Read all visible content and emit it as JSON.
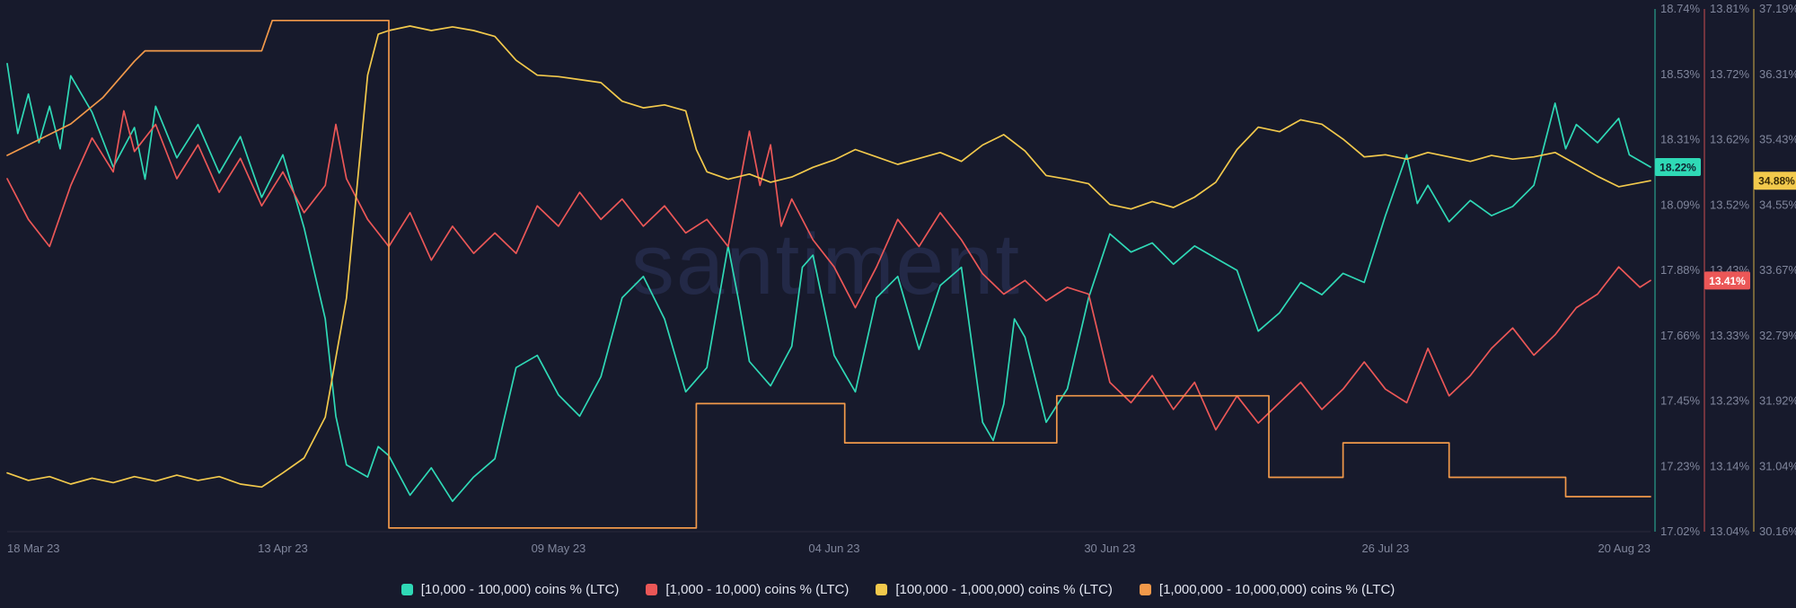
{
  "chart_data": {
    "type": "line",
    "watermark": "santiment",
    "background": "#171a2c",
    "axis_label_color": "#80869c",
    "x_ticks": [
      "18 Mar 23",
      "13 Apr 23",
      "09 May 23",
      "04 Jun 23",
      "30 Jun 23",
      "26 Jul 23",
      "20 Aug 23"
    ],
    "x_tick_days": [
      0,
      26,
      52,
      78,
      104,
      130,
      155
    ],
    "x_range_days": [
      0,
      155
    ],
    "grid": false,
    "legend_position": "bottom-center",
    "y_axes": [
      {
        "id": "teal",
        "color": "#2fd9b6",
        "max": 18.74,
        "min": 17.02,
        "ticks": [
          "18.74%",
          "18.53%",
          "18.31%",
          "18.09%",
          "17.88%",
          "17.66%",
          "17.45%",
          "17.23%",
          "17.02%"
        ]
      },
      {
        "id": "red",
        "color": "#eb5757",
        "max": 13.81,
        "min": 13.04,
        "ticks": [
          "13.81%",
          "13.72%",
          "13.62%",
          "13.52%",
          "13.43%",
          "13.33%",
          "13.23%",
          "13.14%",
          "13.04%"
        ]
      },
      {
        "id": "yellow",
        "color": "#f2c94c",
        "max": 37.19,
        "min": 30.16,
        "ticks": [
          "37.19%",
          "36.31%",
          "35.43%",
          "34.55%",
          "33.67%",
          "32.79%",
          "31.92%",
          "31.04%",
          "30.16%"
        ]
      }
    ],
    "badges": [
      {
        "axis": "teal",
        "value": 18.22,
        "text": "18.22%",
        "color": "#2fd9b6",
        "text_color": "#0e2430"
      },
      {
        "axis": "yellow",
        "value": 34.88,
        "text": "34.88%",
        "color": "#f2c94c",
        "text_color": "#3a2c07"
      },
      {
        "axis": "red",
        "value": 13.41,
        "text": "13.41%",
        "color": "#eb5757",
        "text_color": "#ffffff"
      }
    ],
    "series": [
      {
        "label": "[10,000 - 100,000) coins % (LTC)",
        "color": "#2fd9b6",
        "axis": "teal",
        "points": [
          [
            0,
            18.56
          ],
          [
            1,
            18.33
          ],
          [
            2,
            18.46
          ],
          [
            3,
            18.3
          ],
          [
            4,
            18.42
          ],
          [
            5,
            18.28
          ],
          [
            6,
            18.52
          ],
          [
            8,
            18.4
          ],
          [
            10,
            18.22
          ],
          [
            12,
            18.35
          ],
          [
            13,
            18.18
          ],
          [
            14,
            18.42
          ],
          [
            16,
            18.25
          ],
          [
            18,
            18.36
          ],
          [
            20,
            18.2
          ],
          [
            22,
            18.32
          ],
          [
            24,
            18.12
          ],
          [
            26,
            18.26
          ],
          [
            28,
            18.02
          ],
          [
            30,
            17.72
          ],
          [
            31,
            17.4
          ],
          [
            32,
            17.24
          ],
          [
            34,
            17.2
          ],
          [
            35,
            17.3
          ],
          [
            36,
            17.27
          ],
          [
            38,
            17.14
          ],
          [
            40,
            17.23
          ],
          [
            42,
            17.12
          ],
          [
            44,
            17.2
          ],
          [
            46,
            17.26
          ],
          [
            48,
            17.56
          ],
          [
            50,
            17.6
          ],
          [
            52,
            17.47
          ],
          [
            54,
            17.4
          ],
          [
            56,
            17.53
          ],
          [
            58,
            17.79
          ],
          [
            60,
            17.86
          ],
          [
            62,
            17.72
          ],
          [
            64,
            17.48
          ],
          [
            66,
            17.56
          ],
          [
            68,
            17.96
          ],
          [
            69,
            17.78
          ],
          [
            70,
            17.58
          ],
          [
            72,
            17.5
          ],
          [
            74,
            17.63
          ],
          [
            75,
            17.89
          ],
          [
            76,
            17.93
          ],
          [
            78,
            17.6
          ],
          [
            80,
            17.48
          ],
          [
            82,
            17.79
          ],
          [
            84,
            17.86
          ],
          [
            86,
            17.62
          ],
          [
            88,
            17.83
          ],
          [
            90,
            17.89
          ],
          [
            92,
            17.38
          ],
          [
            93,
            17.32
          ],
          [
            94,
            17.44
          ],
          [
            95,
            17.72
          ],
          [
            96,
            17.66
          ],
          [
            98,
            17.38
          ],
          [
            100,
            17.49
          ],
          [
            102,
            17.79
          ],
          [
            104,
            18.0
          ],
          [
            106,
            17.94
          ],
          [
            108,
            17.97
          ],
          [
            110,
            17.9
          ],
          [
            112,
            17.96
          ],
          [
            114,
            17.92
          ],
          [
            116,
            17.88
          ],
          [
            118,
            17.68
          ],
          [
            120,
            17.74
          ],
          [
            122,
            17.84
          ],
          [
            124,
            17.8
          ],
          [
            126,
            17.87
          ],
          [
            128,
            17.84
          ],
          [
            130,
            18.06
          ],
          [
            132,
            18.26
          ],
          [
            133,
            18.1
          ],
          [
            134,
            18.16
          ],
          [
            136,
            18.04
          ],
          [
            138,
            18.11
          ],
          [
            140,
            18.06
          ],
          [
            142,
            18.09
          ],
          [
            144,
            18.16
          ],
          [
            146,
            18.43
          ],
          [
            147,
            18.28
          ],
          [
            148,
            18.36
          ],
          [
            150,
            18.3
          ],
          [
            152,
            18.38
          ],
          [
            153,
            18.26
          ],
          [
            155,
            18.22
          ]
        ]
      },
      {
        "label": "[1,000 - 10,000) coins % (LTC)",
        "color": "#eb5757",
        "axis": "red",
        "points": [
          [
            0,
            13.56
          ],
          [
            2,
            13.5
          ],
          [
            4,
            13.46
          ],
          [
            6,
            13.55
          ],
          [
            8,
            13.62
          ],
          [
            10,
            13.57
          ],
          [
            11,
            13.66
          ],
          [
            12,
            13.6
          ],
          [
            14,
            13.64
          ],
          [
            16,
            13.56
          ],
          [
            18,
            13.61
          ],
          [
            20,
            13.54
          ],
          [
            22,
            13.59
          ],
          [
            24,
            13.52
          ],
          [
            26,
            13.57
          ],
          [
            28,
            13.51
          ],
          [
            30,
            13.55
          ],
          [
            31,
            13.64
          ],
          [
            32,
            13.56
          ],
          [
            34,
            13.5
          ],
          [
            36,
            13.46
          ],
          [
            38,
            13.51
          ],
          [
            40,
            13.44
          ],
          [
            42,
            13.49
          ],
          [
            44,
            13.45
          ],
          [
            46,
            13.48
          ],
          [
            48,
            13.45
          ],
          [
            50,
            13.52
          ],
          [
            52,
            13.49
          ],
          [
            54,
            13.54
          ],
          [
            56,
            13.5
          ],
          [
            58,
            13.53
          ],
          [
            60,
            13.49
          ],
          [
            62,
            13.52
          ],
          [
            64,
            13.48
          ],
          [
            66,
            13.5
          ],
          [
            68,
            13.46
          ],
          [
            70,
            13.63
          ],
          [
            71,
            13.55
          ],
          [
            72,
            13.61
          ],
          [
            73,
            13.49
          ],
          [
            74,
            13.53
          ],
          [
            76,
            13.47
          ],
          [
            78,
            13.43
          ],
          [
            80,
            13.37
          ],
          [
            82,
            13.43
          ],
          [
            84,
            13.5
          ],
          [
            86,
            13.46
          ],
          [
            88,
            13.51
          ],
          [
            90,
            13.47
          ],
          [
            92,
            13.42
          ],
          [
            94,
            13.39
          ],
          [
            96,
            13.41
          ],
          [
            98,
            13.38
          ],
          [
            100,
            13.4
          ],
          [
            102,
            13.39
          ],
          [
            104,
            13.26
          ],
          [
            106,
            13.23
          ],
          [
            108,
            13.27
          ],
          [
            110,
            13.22
          ],
          [
            112,
            13.26
          ],
          [
            114,
            13.19
          ],
          [
            116,
            13.24
          ],
          [
            118,
            13.2
          ],
          [
            120,
            13.23
          ],
          [
            122,
            13.26
          ],
          [
            124,
            13.22
          ],
          [
            126,
            13.25
          ],
          [
            128,
            13.29
          ],
          [
            130,
            13.25
          ],
          [
            132,
            13.23
          ],
          [
            134,
            13.31
          ],
          [
            136,
            13.24
          ],
          [
            138,
            13.27
          ],
          [
            140,
            13.31
          ],
          [
            142,
            13.34
          ],
          [
            144,
            13.3
          ],
          [
            146,
            13.33
          ],
          [
            148,
            13.37
          ],
          [
            150,
            13.39
          ],
          [
            152,
            13.43
          ],
          [
            154,
            13.4
          ],
          [
            155,
            13.41
          ]
        ]
      },
      {
        "label": "[100,000 - 1,000,000) coins % (LTC)",
        "color": "#f2c94c",
        "axis": "yellow",
        "points": [
          [
            0,
            30.95
          ],
          [
            2,
            30.85
          ],
          [
            4,
            30.9
          ],
          [
            6,
            30.8
          ],
          [
            8,
            30.88
          ],
          [
            10,
            30.82
          ],
          [
            12,
            30.9
          ],
          [
            14,
            30.84
          ],
          [
            16,
            30.92
          ],
          [
            18,
            30.85
          ],
          [
            20,
            30.9
          ],
          [
            22,
            30.8
          ],
          [
            24,
            30.76
          ],
          [
            26,
            30.95
          ],
          [
            28,
            31.15
          ],
          [
            30,
            31.7
          ],
          [
            32,
            33.3
          ],
          [
            34,
            36.3
          ],
          [
            35,
            36.85
          ],
          [
            36,
            36.9
          ],
          [
            38,
            36.96
          ],
          [
            40,
            36.9
          ],
          [
            42,
            36.95
          ],
          [
            44,
            36.9
          ],
          [
            46,
            36.82
          ],
          [
            48,
            36.5
          ],
          [
            50,
            36.3
          ],
          [
            52,
            36.28
          ],
          [
            54,
            36.24
          ],
          [
            56,
            36.2
          ],
          [
            58,
            35.95
          ],
          [
            60,
            35.86
          ],
          [
            62,
            35.9
          ],
          [
            64,
            35.82
          ],
          [
            65,
            35.3
          ],
          [
            66,
            35.0
          ],
          [
            68,
            34.9
          ],
          [
            70,
            34.97
          ],
          [
            72,
            34.86
          ],
          [
            74,
            34.93
          ],
          [
            76,
            35.06
          ],
          [
            78,
            35.16
          ],
          [
            80,
            35.3
          ],
          [
            82,
            35.2
          ],
          [
            84,
            35.1
          ],
          [
            86,
            35.18
          ],
          [
            88,
            35.26
          ],
          [
            90,
            35.14
          ],
          [
            92,
            35.36
          ],
          [
            94,
            35.5
          ],
          [
            96,
            35.28
          ],
          [
            98,
            34.95
          ],
          [
            100,
            34.9
          ],
          [
            102,
            34.84
          ],
          [
            104,
            34.56
          ],
          [
            106,
            34.5
          ],
          [
            108,
            34.6
          ],
          [
            110,
            34.52
          ],
          [
            112,
            34.66
          ],
          [
            114,
            34.86
          ],
          [
            116,
            35.3
          ],
          [
            118,
            35.6
          ],
          [
            120,
            35.54
          ],
          [
            122,
            35.7
          ],
          [
            124,
            35.64
          ],
          [
            126,
            35.44
          ],
          [
            128,
            35.2
          ],
          [
            130,
            35.23
          ],
          [
            132,
            35.17
          ],
          [
            134,
            35.26
          ],
          [
            136,
            35.2
          ],
          [
            138,
            35.14
          ],
          [
            140,
            35.22
          ],
          [
            142,
            35.17
          ],
          [
            144,
            35.2
          ],
          [
            146,
            35.26
          ],
          [
            148,
            35.1
          ],
          [
            150,
            34.94
          ],
          [
            152,
            34.8
          ],
          [
            155,
            34.88
          ]
        ]
      },
      {
        "label": "[1,000,000 - 10,000,000) coins % (LTC)",
        "color": "#f2994a",
        "axis": "normalized",
        "scale_note": "no visible y-axis for this series; values are fraction of plot height (0 = bottom, 1 = top)",
        "points": [
          [
            0,
            0.72
          ],
          [
            3,
            0.75
          ],
          [
            6,
            0.78
          ],
          [
            9,
            0.83
          ],
          [
            12,
            0.9
          ],
          [
            13,
            0.92
          ],
          [
            24,
            0.92
          ],
          [
            25,
            0.978
          ],
          [
            36,
            0.978
          ],
          [
            36,
            0.007
          ],
          [
            65,
            0.007
          ],
          [
            65,
            0.245
          ],
          [
            79,
            0.245
          ],
          [
            79,
            0.17
          ],
          [
            99,
            0.17
          ],
          [
            99,
            0.26
          ],
          [
            119,
            0.26
          ],
          [
            119,
            0.104
          ],
          [
            126,
            0.104
          ],
          [
            126,
            0.17
          ],
          [
            136,
            0.17
          ],
          [
            136,
            0.104
          ],
          [
            147,
            0.104
          ],
          [
            147,
            0.067
          ],
          [
            155,
            0.067
          ]
        ]
      }
    ]
  }
}
